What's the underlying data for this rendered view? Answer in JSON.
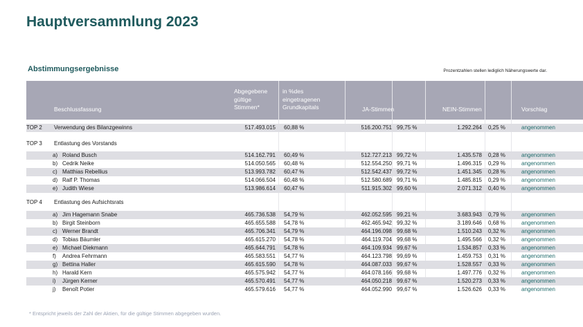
{
  "title": "Hauptversammlung 2023",
  "subtitle": "Abstimmungsergebnisse",
  "note": "Prozentzahlen stellen lediglich Näherungswerte dar.",
  "header": {
    "beschluss": "Beschlussfassung",
    "abgegebene": "Abgegebene\ngültige\nStimmen*",
    "prozent": "in %des\neingetragenen\nGrundkapitals",
    "ja": "JA-Stimmen",
    "nein": "NEIN-Stimmen",
    "vorschlag": "Vorschlag"
  },
  "colors": {
    "accent": "#1f5a5d",
    "header_bg": "#a7a7b5",
    "row_shade": "#dedee3",
    "result": "#1f6b6b"
  },
  "rows": [
    {
      "kind": "item",
      "top": "TOP 2",
      "label": "Verwendung des Bilanzgewinns",
      "stimmen": "517.493.015",
      "pct": "60,88 %",
      "ja": "516.200.751",
      "ja_pct": "99,75 %",
      "nein": "1.292.264",
      "nein_pct": "0,25 %",
      "result": "angenommen",
      "shade": true
    },
    {
      "kind": "section",
      "top": "TOP 3",
      "label": "Entlastung des Vorstands"
    },
    {
      "kind": "item",
      "letter": "a)",
      "label": "Roland Busch",
      "stimmen": "514.162.791",
      "pct": "60,49 %",
      "ja": "512.727.213",
      "ja_pct": "99,72 %",
      "nein": "1.435.578",
      "nein_pct": "0,28 %",
      "result": "angenommen",
      "shade": true
    },
    {
      "kind": "item",
      "letter": "b)",
      "label": "Cedrik Neike",
      "stimmen": "514.050.565",
      "pct": "60,48 %",
      "ja": "512.554.250",
      "ja_pct": "99,71 %",
      "nein": "1.496.315",
      "nein_pct": "0,29 %",
      "result": "angenommen",
      "shade": false
    },
    {
      "kind": "item",
      "letter": "c)",
      "label": "Matthias Rebellius",
      "stimmen": "513.993.782",
      "pct": "60,47 %",
      "ja": "512.542.437",
      "ja_pct": "99,72 %",
      "nein": "1.451.345",
      "nein_pct": "0,28 %",
      "result": "angenommen",
      "shade": true
    },
    {
      "kind": "item",
      "letter": "d)",
      "label": "Ralf P. Thomas",
      "stimmen": "514.066.504",
      "pct": "60,48 %",
      "ja": "512.580.689",
      "ja_pct": "99,71 %",
      "nein": "1.485.815",
      "nein_pct": "0,29 %",
      "result": "angenommen",
      "shade": false
    },
    {
      "kind": "item",
      "letter": "e)",
      "label": "Judith Wiese",
      "stimmen": "513.986.614",
      "pct": "60,47 %",
      "ja": "511.915.302",
      "ja_pct": "99,60 %",
      "nein": "2.071.312",
      "nein_pct": "0,40 %",
      "result": "angenommen",
      "shade": true
    },
    {
      "kind": "section",
      "top": "TOP 4",
      "label": "Entlastung des Aufsichtsrats"
    },
    {
      "kind": "item",
      "letter": "a)",
      "label": "Jim Hagemann Snabe",
      "stimmen": "465.736.538",
      "pct": "54,79 %",
      "ja": "462.052.595",
      "ja_pct": "99,21 %",
      "nein": "3.683.943",
      "nein_pct": "0,79 %",
      "result": "angenommen",
      "shade": true
    },
    {
      "kind": "item",
      "letter": "b)",
      "label": "Birgit Steinborn",
      "stimmen": "465.655.588",
      "pct": "54,78 %",
      "ja": "462.465.942",
      "ja_pct": "99,32 %",
      "nein": "3.189.646",
      "nein_pct": "0,68 %",
      "result": "angenommen",
      "shade": false
    },
    {
      "kind": "item",
      "letter": "c)",
      "label": "Werner Brandt",
      "stimmen": "465.706.341",
      "pct": "54,79 %",
      "ja": "464.196.098",
      "ja_pct": "99,68 %",
      "nein": "1.510.243",
      "nein_pct": "0,32 %",
      "result": "angenommen",
      "shade": true
    },
    {
      "kind": "item",
      "letter": "d)",
      "label": "Tobias Bäumler",
      "stimmen": "465.615.270",
      "pct": "54,78 %",
      "ja": "464.119.704",
      "ja_pct": "99,68 %",
      "nein": "1.495.566",
      "nein_pct": "0,32 %",
      "result": "angenommen",
      "shade": false
    },
    {
      "kind": "item",
      "letter": "e)",
      "label": "Michael Diekmann",
      "stimmen": "465.644.791",
      "pct": "54,78 %",
      "ja": "464.109.934",
      "ja_pct": "99,67 %",
      "nein": "1.534.857",
      "nein_pct": "0,33 %",
      "result": "angenommen",
      "shade": true
    },
    {
      "kind": "item",
      "letter": "f)",
      "label": "Andrea Fehrmann",
      "stimmen": "465.583.551",
      "pct": "54,77 %",
      "ja": "464.123.798",
      "ja_pct": "99,69 %",
      "nein": "1.459.753",
      "nein_pct": "0,31 %",
      "result": "angenommen",
      "shade": false
    },
    {
      "kind": "item",
      "letter": "g)",
      "label": "Bettina Haller",
      "stimmen": "465.615.590",
      "pct": "54,78 %",
      "ja": "464.087.033",
      "ja_pct": "99,67 %",
      "nein": "1.528.557",
      "nein_pct": "0,33 %",
      "result": "angenommen",
      "shade": true
    },
    {
      "kind": "item",
      "letter": "h)",
      "label": "Harald Kern",
      "stimmen": "465.575.942",
      "pct": "54,77 %",
      "ja": "464.078.166",
      "ja_pct": "99,68 %",
      "nein": "1.497.776",
      "nein_pct": "0,32 %",
      "result": "angenommen",
      "shade": false
    },
    {
      "kind": "item",
      "letter": "i)",
      "label": "Jürgen Kerner",
      "stimmen": "465.570.491",
      "pct": "54,77 %",
      "ja": "464.050.218",
      "ja_pct": "99,67 %",
      "nein": "1.520.273",
      "nein_pct": "0,33 %",
      "result": "angenommen",
      "shade": true
    },
    {
      "kind": "item",
      "letter": "j)",
      "label": "Benoît Potier",
      "stimmen": "465.579.616",
      "pct": "54,77 %",
      "ja": "464.052.990",
      "ja_pct": "99,67 %",
      "nein": "1.526.626",
      "nein_pct": "0,33 %",
      "result": "angenommen",
      "shade": false
    }
  ],
  "footnote": "* Entspricht jeweils der Zahl der Aktien, für die gültige Stimmen abgegeben wurden."
}
